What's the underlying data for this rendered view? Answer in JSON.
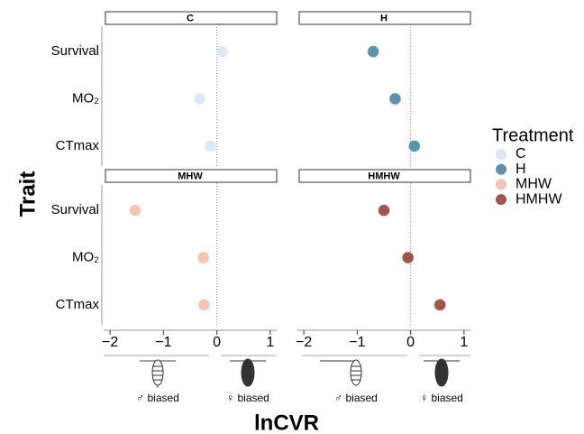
{
  "chart_data": {
    "type": "dot-facet",
    "x_label": "lnCVR",
    "y_label": "Trait",
    "legend_title": "Treatment",
    "categories": [
      "Survival",
      "MO₂",
      "CTmax"
    ],
    "series": [
      {
        "name": "C",
        "color": "#dce9f3",
        "values": [
          0.1,
          -0.32,
          -0.12
        ]
      },
      {
        "name": "H",
        "color": "#5b93ad",
        "values": [
          -0.7,
          -0.29,
          0.07
        ]
      },
      {
        "name": "MHW",
        "color": "#f6c5b2",
        "values": [
          -1.53,
          -0.25,
          -0.24
        ]
      },
      {
        "name": "HMHW",
        "color": "#a3544d",
        "values": [
          -0.5,
          -0.05,
          0.55
        ]
      }
    ],
    "xlim": [
      -2.12,
      1.12
    ],
    "xticks": [
      {
        "value": -2,
        "label": "−2"
      },
      {
        "value": -1,
        "label": "−1"
      },
      0,
      1
    ],
    "annotations": [
      "♂ biased",
      "♀ biased"
    ]
  }
}
